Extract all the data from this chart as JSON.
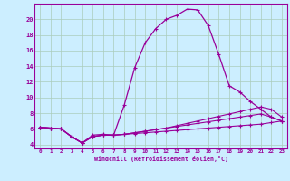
{
  "xlabel": "Windchill (Refroidissement éolien,°C)",
  "x": [
    0,
    1,
    2,
    3,
    4,
    5,
    6,
    7,
    8,
    9,
    10,
    11,
    12,
    13,
    14,
    15,
    16,
    17,
    18,
    19,
    20,
    21,
    22,
    23
  ],
  "line_main": [
    6.2,
    6.1,
    6.0,
    5.0,
    4.2,
    5.2,
    5.3,
    5.2,
    9.0,
    13.8,
    17.0,
    18.8,
    20.0,
    20.5,
    21.3,
    21.2,
    19.2,
    15.5,
    11.5,
    10.7,
    9.5,
    8.5,
    7.5,
    7.0
  ],
  "line_a": [
    6.2,
    6.1,
    6.0,
    5.0,
    4.2,
    5.0,
    5.2,
    5.2,
    5.3,
    5.5,
    5.7,
    5.9,
    6.1,
    6.4,
    6.7,
    7.0,
    7.3,
    7.6,
    7.9,
    8.2,
    8.5,
    8.8,
    8.5,
    7.5
  ],
  "line_b": [
    6.2,
    6.1,
    6.0,
    5.0,
    4.2,
    5.0,
    5.2,
    5.2,
    5.3,
    5.5,
    5.7,
    5.9,
    6.1,
    6.3,
    6.5,
    6.7,
    6.9,
    7.1,
    7.3,
    7.5,
    7.7,
    7.9,
    7.5,
    7.0
  ],
  "line_c": [
    6.2,
    6.1,
    6.0,
    5.0,
    4.2,
    5.0,
    5.2,
    5.2,
    5.3,
    5.4,
    5.5,
    5.6,
    5.7,
    5.8,
    5.9,
    6.0,
    6.1,
    6.2,
    6.3,
    6.4,
    6.5,
    6.6,
    6.8,
    7.0
  ],
  "color": "#990099",
  "bg_color": "#cceeff",
  "grid_color": "#aaccbb",
  "ylim": [
    3.5,
    22
  ],
  "yticks": [
    4,
    6,
    8,
    10,
    12,
    14,
    16,
    18,
    20
  ],
  "xlim": [
    -0.5,
    23.5
  ]
}
